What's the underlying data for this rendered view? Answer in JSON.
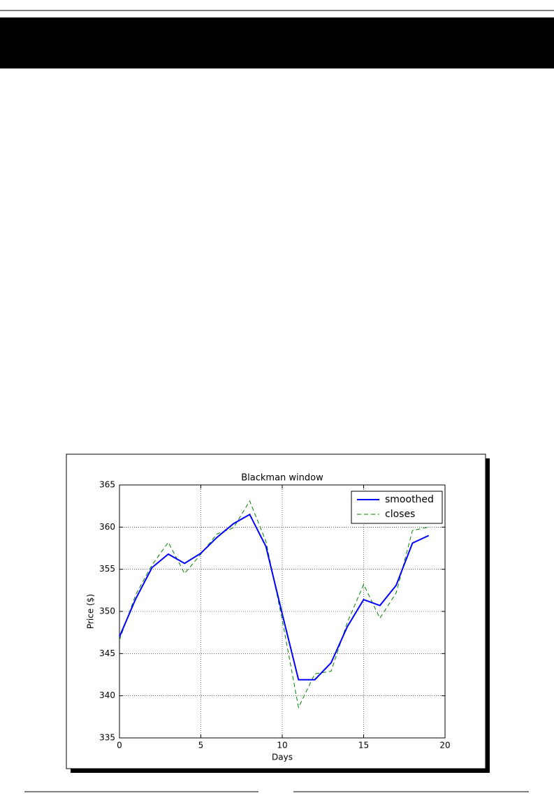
{
  "chart_data": {
    "type": "line",
    "title": "Blackman window",
    "x_label": "Days",
    "y_label": "Price ($)",
    "x": [
      0,
      1,
      2,
      3,
      4,
      5,
      6,
      7,
      8,
      9,
      10,
      11,
      12,
      13,
      14,
      15,
      16,
      17,
      18,
      19
    ],
    "series": [
      {
        "name": "smoothed",
        "color": "#0000ff",
        "style": "solid",
        "values": [
          347.0,
          351.5,
          355.2,
          356.8,
          355.7,
          356.9,
          358.8,
          360.4,
          361.5,
          357.7,
          349.7,
          341.9,
          341.9,
          343.9,
          348.2,
          351.4,
          350.7,
          353.1,
          358.1,
          359.0
        ]
      },
      {
        "name": "closes",
        "color": "#008000",
        "style": "dashed",
        "values": [
          346.6,
          352.0,
          355.5,
          358.2,
          354.5,
          356.8,
          359.2,
          359.9,
          363.1,
          358.3,
          349.0,
          338.6,
          342.6,
          342.9,
          348.7,
          353.2,
          349.2,
          352.2,
          359.6,
          360.0
        ]
      }
    ],
    "xlim": [
      0,
      20
    ],
    "xticks": [
      0,
      5,
      10,
      15,
      20
    ],
    "ylim": [
      335,
      365
    ],
    "yticks": [
      335,
      340,
      345,
      350,
      355,
      360,
      365
    ],
    "grid": true,
    "legend": "upper right"
  }
}
